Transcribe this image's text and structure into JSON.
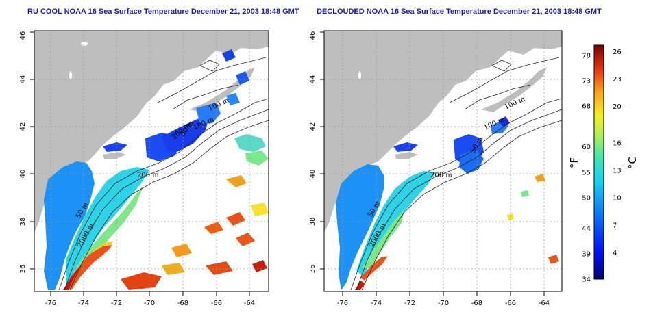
{
  "chart_data": [
    {
      "type": "heatmap",
      "panel": "left",
      "title": "RU COOL NOAA 16 Sea Surface Temperature December 21, 2003 18:48 GMT",
      "x_ticks": [
        "-76",
        "-74",
        "-72",
        "-70",
        "-68",
        "-66",
        "-64"
      ],
      "y_ticks": [
        "36",
        "38",
        "40",
        "42",
        "44",
        "46"
      ],
      "xlim": [
        -77.2,
        -63.0
      ],
      "ylim": [
        35.0,
        46.0
      ],
      "contour_labels": [
        "200 m",
        "100 m",
        "50 m",
        "2000 m",
        "200 m",
        "100 m",
        "50 m"
      ],
      "grid": true
    },
    {
      "type": "heatmap",
      "panel": "right",
      "title": "DECLOUDED NOAA 16 Sea Surface Temperature December 21, 2003 18:48 GMT",
      "x_ticks": [
        "-76",
        "-74",
        "-72",
        "-70",
        "-68",
        "-66",
        "-64"
      ],
      "y_ticks": [
        "36",
        "38",
        "40",
        "42",
        "44",
        "46"
      ],
      "xlim": [
        -77.2,
        -63.0
      ],
      "ylim": [
        35.0,
        46.0
      ],
      "contour_labels": [
        "200 m",
        "100 m",
        "100 m",
        "50 m",
        "50 m",
        "2000 m"
      ],
      "grid": true
    }
  ],
  "colorbar": {
    "fahrenheit_unit": "°F",
    "celsius_unit": "°C",
    "fahrenheit_ticks": [
      "78",
      "73",
      "68",
      "60",
      "55",
      "50",
      "44",
      "39",
      "34"
    ],
    "celsius_ticks": [
      "26",
      "23",
      "20",
      "16",
      "13",
      "10",
      "7",
      "4"
    ],
    "f_range": [
      34,
      80
    ],
    "c_range": [
      1.1,
      26.7
    ]
  },
  "colors": {
    "land": "#bebebe",
    "title": "#1a1aa6",
    "grid": "#9a9a9a"
  }
}
